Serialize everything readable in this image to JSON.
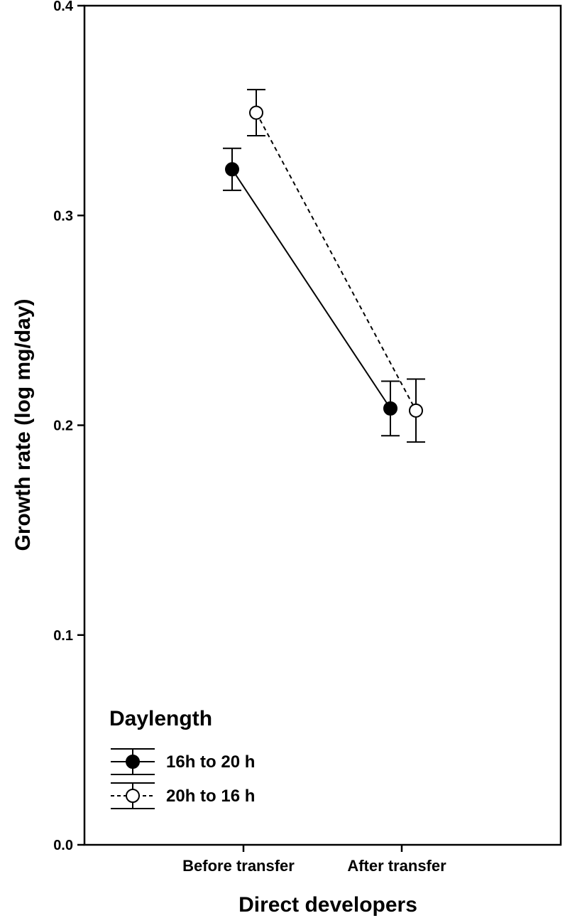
{
  "chart_data": {
    "type": "line",
    "xlabel": "Direct developers",
    "ylabel": "Growth rate (log mg/day)",
    "categories": [
      "Before transfer",
      "After transfer"
    ],
    "ylim": [
      0.0,
      0.4
    ],
    "yticks": [
      "0.0",
      "0.1",
      "0.2",
      "0.3",
      "0.4"
    ],
    "grid": false,
    "legend": {
      "title": "Daylength",
      "placement": "bottom-left"
    },
    "series": [
      {
        "name": "16h to 20 h",
        "marker": "filled-circle",
        "line_style": "solid",
        "values": [
          0.322,
          0.208
        ],
        "error": [
          0.01,
          0.013
        ]
      },
      {
        "name": "20h to 16 h",
        "marker": "open-circle",
        "line_style": "dashed",
        "values": [
          0.349,
          0.207
        ],
        "error": [
          0.011,
          0.015
        ]
      }
    ]
  }
}
